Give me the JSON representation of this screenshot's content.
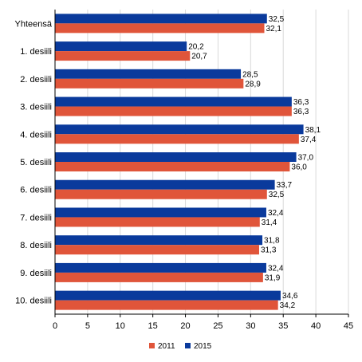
{
  "chart_data": {
    "type": "bar",
    "orientation": "horizontal",
    "categories": [
      "Yhteensä",
      "1. desiili",
      "2. desiili",
      "3. desiili",
      "4. desiili",
      "5. desiili",
      "6. desiili",
      "7. desiili",
      "8. desiili",
      "9. desiili",
      "10. desiili"
    ],
    "series": [
      {
        "name": "2015",
        "color": "#0a3a9c",
        "values": [
          32.5,
          20.2,
          28.5,
          36.3,
          38.1,
          37.0,
          33.7,
          32.4,
          31.8,
          32.4,
          34.6
        ],
        "labels": [
          "32,5",
          "20,2",
          "28,5",
          "36,3",
          "38,1",
          "37,0",
          "33,7",
          "32,4",
          "31,8",
          "32,4",
          "34,6"
        ]
      },
      {
        "name": "2011",
        "color": "#e0553a",
        "values": [
          32.1,
          20.7,
          28.9,
          36.3,
          37.4,
          36.0,
          32.5,
          31.4,
          31.3,
          31.9,
          34.2
        ],
        "labels": [
          "32,1",
          "20,7",
          "28,9",
          "36,3",
          "37,4",
          "36,0",
          "32,5",
          "31,4",
          "31,3",
          "31,9",
          "34,2"
        ]
      }
    ],
    "xlim": [
      0,
      45
    ],
    "xticks": [
      "0",
      "5",
      "10",
      "15",
      "20",
      "25",
      "30",
      "35",
      "40",
      "45"
    ],
    "grid": true,
    "legend": {
      "placement": "bottom",
      "items": [
        {
          "name": "2011",
          "color": "#e0553a"
        },
        {
          "name": "2015",
          "color": "#0a3a9c"
        }
      ]
    }
  }
}
